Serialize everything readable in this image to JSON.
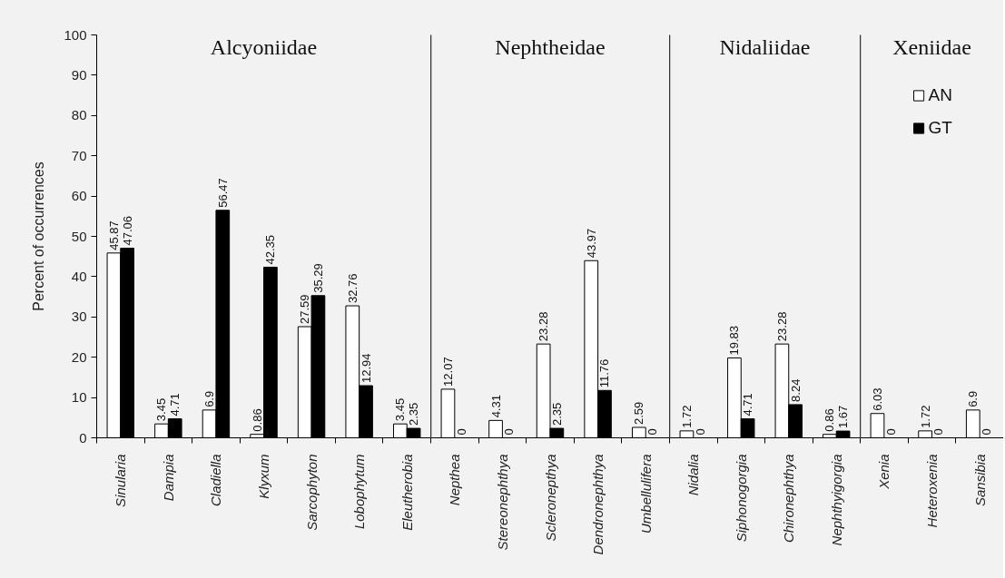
{
  "chart_data": [
    {
      "type": "bar",
      "title": "Alcyoniidae",
      "ylabel": "Percent of occurrences",
      "categories": [
        "Sinularia",
        "Dampia",
        "Cladiella",
        "Klyxum",
        "Sarcophyton",
        "Lobophytum",
        "Eleutherobia"
      ],
      "series": [
        {
          "color": "#ffffff",
          "values": [
            45.87,
            3.45,
            6.9,
            0.86,
            27.59,
            32.76,
            3.45
          ]
        },
        {
          "color": "#000000",
          "values": [
            47.06,
            4.71,
            56.47,
            42.35,
            35.29,
            12.94,
            2.35
          ]
        }
      ],
      "ylim": [
        0,
        100
      ],
      "yticks": [
        0,
        10,
        20,
        30,
        40,
        50,
        60,
        70,
        80,
        90,
        100
      ],
      "data_labels": true
    },
    {
      "type": "bar",
      "title": "Nephtheidae",
      "categories": [
        "Nepthea",
        "Stereonephthya",
        "Scleronepthya",
        "Dendronephthya",
        "Umbellulifera"
      ],
      "series": [
        {
          "color": "#ffffff",
          "values": [
            12.07,
            4.31,
            23.28,
            43.97,
            2.59
          ]
        },
        {
          "color": "#000000",
          "values": [
            0,
            0,
            2.35,
            11.76,
            0
          ]
        }
      ],
      "ylim": [
        0,
        100
      ],
      "tick_labels": "x",
      "data_labels": true
    },
    {
      "type": "bar",
      "title": "Nidaliidae",
      "categories": [
        "Nidalia",
        "Siphonogorgia",
        "Chironephthya",
        "Nephthyigorgia"
      ],
      "series": [
        {
          "color": "#ffffff",
          "values": [
            1.72,
            19.83,
            23.28,
            0.86
          ]
        },
        {
          "color": "#000000",
          "values": [
            0,
            4.71,
            8.24,
            1.67
          ]
        }
      ],
      "ylim": [
        0,
        100
      ],
      "tick_labels": "x",
      "data_labels": true
    },
    {
      "type": "bar",
      "title": "Xeniidae",
      "categories": [
        "Xenia",
        "Heteroxenia",
        "Sansibia"
      ],
      "series": [
        {
          "name": "AN",
          "color": "#ffffff",
          "values": [
            6.03,
            1.72,
            6.9
          ]
        },
        {
          "name": "GT",
          "color": "#000000",
          "values": [
            0,
            0,
            0
          ]
        }
      ],
      "ylim": [
        0,
        100
      ],
      "tick_labels": "x",
      "data_labels": true,
      "legend": "top right"
    }
  ]
}
